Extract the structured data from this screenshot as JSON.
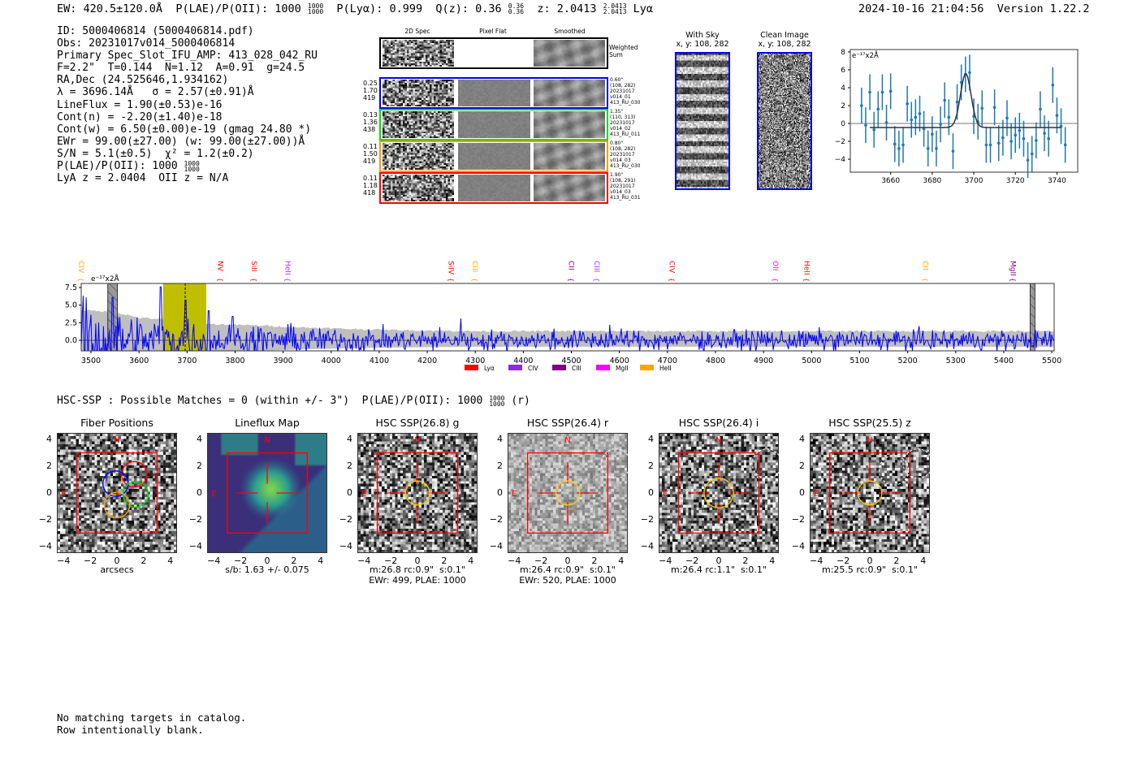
{
  "header": {
    "ew": "EW: 420.5±120.0Å",
    "plae": "P(LAE)/P(OII): 1000",
    "plae_sup": "1000",
    "plae_sub": "1000",
    "plya": "P(Lyα): 0.999",
    "qz": "Q(z): 0.36",
    "qz_sup": "0.36",
    "qz_sub": "0.36",
    "z": "z: 2.0413",
    "z_sup": "2.0413",
    "z_sub": "2.0413",
    "z_line": "Lyα",
    "timestamp": "2024-10-16 21:04:56",
    "version": "Version 1.22.2"
  },
  "info": {
    "lines": [
      "ID: 5000406814 (5000406814.pdf)",
      "Obs: 20231017v014_5000406814",
      "Primary Spec_Slot_IFU_AMP: 413_028_042_RU",
      "F=2.2\"  T=0.144  N=1.12  A=0.91  g=24.5",
      "RA,Dec (24.525646,1.934162)",
      "λ = 3696.14Å   σ = 2.57(±0.91)Å",
      "LineFlux = 1.90(±0.53)e-16",
      "Cont(n) = -2.20(±1.40)e-18",
      "Cont(w) = 6.50(±0.00)e-19 (gmag 24.80 *)",
      "EWr = 99.00(±27.00) (w: 99.00(±27.00))Å",
      "S/N = 5.1(±0.5)  χ² = 1.2(±0.2)"
    ],
    "plae": "P(LAE)/P(OII): 1000",
    "plae_sup": "1000",
    "plae_sub": "1000",
    "lya_z": "LyA z = 2.0404  OII z = N/A"
  },
  "spec2d": {
    "col_titles": [
      "2D Spec",
      "Pixel Flat",
      "Smoothed"
    ],
    "weighted_label": "Weighted\nSum",
    "rows": [
      {
        "color": "#0000ff",
        "left": "0.25\n1.70\n419",
        "right": "0.60\"\n(108, 282)\n20231017\nv014_01\n413_RU_030"
      },
      {
        "color": "#00dd00",
        "left": "0.13\n1.36\n438",
        "right": "1.35\"\n(110, 313)\n20231017\nv014_02\n413_RU_011"
      },
      {
        "color": "#ff9900",
        "left": "0.11\n1.50\n419",
        "right": "0.80\"\n(108, 282)\n20231017\nv014_03\n413_RU_030"
      },
      {
        "color": "#ff0000",
        "left": "0.11\n1.18\n418",
        "right": "1.90\"\n(108, 291)\n20231017\nv014_03\n413_RU_031"
      }
    ]
  },
  "sky": {
    "with_sky": "With Sky\nx, y: 108, 282",
    "clean": "Clean Image\nx, y: 108, 282"
  },
  "chart_data": [
    {
      "type": "scatter",
      "title": "",
      "ylabel": "e⁻¹⁷x2Å",
      "xlim": [
        3640.6,
        3750
      ],
      "ylim": [
        -5.45,
        8.27
      ],
      "xticks": [
        "3660",
        "3680",
        "3700",
        "3720",
        "3740"
      ],
      "yticks": [
        "8",
        "6",
        "4",
        "2",
        "0",
        "−2",
        "−4"
      ],
      "x": [
        3646,
        3648,
        3650,
        3652,
        3654,
        3656,
        3658,
        3660,
        3662,
        3664,
        3666,
        3668,
        3670,
        3672,
        3674,
        3676,
        3678,
        3680,
        3682,
        3684,
        3686,
        3688,
        3690,
        3692,
        3694,
        3696,
        3698,
        3700,
        3702,
        3704,
        3706,
        3708,
        3710,
        3712,
        3714,
        3716,
        3718,
        3720,
        3722,
        3724,
        3726,
        3728,
        3730,
        3732,
        3734,
        3736,
        3738,
        3740,
        3742,
        3744
      ],
      "y": [
        2.0,
        -0.2,
        3.5,
        -0.7,
        1.6,
        3.5,
        0.1,
        3.6,
        -2.3,
        -2.8,
        -2.4,
        2.2,
        0.4,
        0.7,
        1.1,
        -0.6,
        -2.8,
        -1.2,
        -2.8,
        -0.1,
        2.6,
        0.7,
        -3.1,
        2.4,
        4.6,
        5.5,
        5.7,
        0.8,
        0.2,
        1.7,
        -2.4,
        -2.4,
        1.8,
        -2.2,
        -1.6,
        0.6,
        -2.0,
        -1.3,
        -0.8,
        -1.7,
        -4.1,
        -3.4,
        -1.9,
        1.6,
        -1.1,
        -1.7,
        4.3,
        0.9,
        -0.3,
        -2.4
      ],
      "yerr": 2.0,
      "fit": {
        "center": 3696.14,
        "sigma": 2.57,
        "amplitude": 6.0,
        "continuum": -0.45,
        "range": [
          3650,
          3742
        ]
      },
      "colors": {
        "points": "#1f77b4",
        "fit": "#333333"
      }
    },
    {
      "type": "line",
      "ylabel": "e⁻¹⁷x2Å",
      "xlim": [
        3479.7,
        5505
      ],
      "ylim": [
        -1.5,
        8.08
      ],
      "yticks": [
        "7.5",
        "5.0",
        "2.5",
        "0.0"
      ],
      "xticks": [
        "3500",
        "3600",
        "3700",
        "3800",
        "3900",
        "4000",
        "4100",
        "4200",
        "4300",
        "4400",
        "4500",
        "4600",
        "4700",
        "4800",
        "4900",
        "5000",
        "5100",
        "5200",
        "5300",
        "5400",
        "5500"
      ],
      "line_center": 3696.14,
      "highlight": [
        3650,
        3740
      ],
      "masked": [
        [
          3535,
          3555
        ],
        [
          5455,
          5465
        ]
      ],
      "error_envelope": [
        [
          3480,
          4.3
        ],
        [
          3550,
          4.0
        ],
        [
          3600,
          3.2
        ],
        [
          3700,
          2.8
        ],
        [
          3750,
          2.3
        ],
        [
          3850,
          2.1
        ],
        [
          3950,
          1.8
        ],
        [
          4100,
          1.5
        ],
        [
          4300,
          1.3
        ],
        [
          5500,
          1.3
        ]
      ],
      "peaks": [
        [
          3490,
          6.1
        ],
        [
          3545,
          6.1
        ],
        [
          3645,
          7.6
        ],
        [
          3697,
          5.7
        ],
        [
          3745,
          4.2
        ],
        [
          3795,
          3.4
        ],
        [
          4270,
          3.1
        ],
        [
          4580,
          2.2
        ]
      ],
      "series_color": "#0000ff",
      "lines": [
        {
          "name": "CIV",
          "wave": 3480,
          "color": "#ffa500"
        },
        {
          "name": "NV",
          "wave": 3770,
          "color": "#ff0000"
        },
        {
          "name": "SiII",
          "wave": 3840,
          "color": "#ff0000"
        },
        {
          "name": "HeII",
          "wave": 3910,
          "color": "#9933ff"
        },
        {
          "name": "SiIV",
          "wave": 4250,
          "color": "#ff0000"
        },
        {
          "name": "CIII",
          "wave": 4300,
          "color": "#ffa500"
        },
        {
          "name": "CII",
          "wave": 4500,
          "color": "#800080"
        },
        {
          "name": "CIII",
          "wave": 4553,
          "color": "#9933ff"
        },
        {
          "name": "CIV",
          "wave": 4710,
          "color": "#ff0000"
        },
        {
          "name": "OII",
          "wave": 4925,
          "color": "#ff00ff"
        },
        {
          "name": "HeII",
          "wave": 4990,
          "color": "#ff0000"
        },
        {
          "name": "CII",
          "wave": 5237,
          "color": "#ffa500"
        },
        {
          "name": "MgII",
          "wave": 5420,
          "color": "#800080"
        }
      ],
      "legend": [
        {
          "name": "Lyα",
          "color": "#ff0000"
        },
        {
          "name": "CIV",
          "color": "#8a2be2"
        },
        {
          "name": "CIII",
          "color": "#800080"
        },
        {
          "name": "MgII",
          "color": "#ff00ff"
        },
        {
          "name": "HeII",
          "color": "#ffa500"
        }
      ],
      "legend_position": "bottom-center"
    }
  ],
  "hsc": {
    "summary": "HSC-SSP : Possible Matches = 0 (within +/- 3\")  P(LAE)/P(OII): 1000",
    "sup": "1000",
    "sub": "1000",
    "suffix": "(r)",
    "ticks": [
      "−4",
      "−2",
      "0",
      "2",
      "4"
    ],
    "yticks": [
      "4",
      "2",
      "0",
      "−2",
      "−4"
    ],
    "north": "N",
    "east": "E",
    "panels": [
      {
        "title": "Fiber Positions",
        "cap1": "arcsecs",
        "cap2": ""
      },
      {
        "title": "Lineflux Map",
        "cap1": "s/b: 1.63 +/- 0.075",
        "cap2": ""
      },
      {
        "title": "HSC SSP(26.8) g",
        "cap1": "m:26.8 rc:0.9\"  s:0.1\"",
        "cap2": "EWr: 499, PLAE: 1000",
        "ap": 0.9
      },
      {
        "title": "HSC SSP(26.4) r",
        "cap1": "m:26.4 rc:0.9\"  s:0.1\"",
        "cap2": "EWr: 520, PLAE: 1000",
        "ap": 0.9
      },
      {
        "title": "HSC SSP(26.4) i",
        "cap1": "m:26.4 rc:1.1\"  s:0.1\"",
        "cap2": "",
        "ap": 1.1
      },
      {
        "title": "HSC SSP(25.5) z",
        "cap1": "m:25.5 rc:0.9\"  s:0.1\"",
        "cap2": "",
        "ap": 0.9
      }
    ]
  },
  "footer": {
    "line1": "No matching targets in catalog.",
    "line2": "Row intentionally blank."
  }
}
